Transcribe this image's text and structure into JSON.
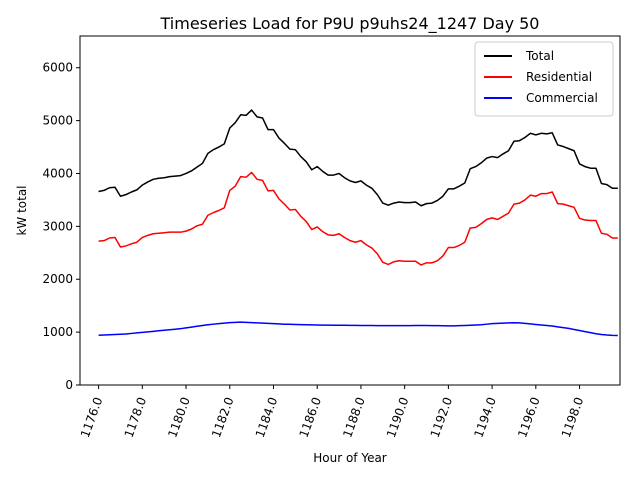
{
  "chart_data": {
    "type": "line",
    "title": "Timeseries Load for P9U p9uhs24_1247  Day 50",
    "xlabel": "Hour of Year",
    "ylabel": "kW total",
    "xlim": [
      1175.15,
      1199.85
    ],
    "ylim": [
      0,
      6600
    ],
    "x_ticks": [
      1176.0,
      1178.0,
      1180.0,
      1182.0,
      1184.0,
      1186.0,
      1188.0,
      1190.0,
      1192.0,
      1194.0,
      1196.0,
      1198.0
    ],
    "x_tick_labels": [
      "1176.0",
      "1178.0",
      "1180.0",
      "1182.0",
      "1184.0",
      "1186.0",
      "1188.0",
      "1190.0",
      "1192.0",
      "1194.0",
      "1196.0",
      "1198.0"
    ],
    "x_tick_rotation": "70 degrees",
    "y_ticks": [
      0,
      1000,
      2000,
      3000,
      4000,
      5000,
      6000
    ],
    "y_tick_labels": [
      "0",
      "1000",
      "2000",
      "3000",
      "4000",
      "5000",
      "6000"
    ],
    "grid": false,
    "legend_position": "top-right",
    "x": [
      1176.0,
      1176.25,
      1176.5,
      1176.75,
      1177.0,
      1177.25,
      1177.5,
      1177.75,
      1178.0,
      1178.25,
      1178.5,
      1178.75,
      1179.0,
      1179.25,
      1179.5,
      1179.75,
      1180.0,
      1180.25,
      1180.5,
      1180.75,
      1181.0,
      1181.25,
      1181.5,
      1181.75,
      1182.0,
      1182.25,
      1182.5,
      1182.75,
      1183.0,
      1183.25,
      1183.5,
      1183.75,
      1184.0,
      1184.25,
      1184.5,
      1184.75,
      1185.0,
      1185.25,
      1185.5,
      1185.75,
      1186.0,
      1186.25,
      1186.5,
      1186.75,
      1187.0,
      1187.25,
      1187.5,
      1187.75,
      1188.0,
      1188.25,
      1188.5,
      1188.75,
      1189.0,
      1189.25,
      1189.5,
      1189.75,
      1190.0,
      1190.25,
      1190.5,
      1190.75,
      1191.0,
      1191.25,
      1191.5,
      1191.75,
      1192.0,
      1192.25,
      1192.5,
      1192.75,
      1193.0,
      1193.25,
      1193.5,
      1193.75,
      1194.0,
      1194.25,
      1194.5,
      1194.75,
      1195.0,
      1195.25,
      1195.5,
      1195.75,
      1196.0,
      1196.25,
      1196.5,
      1196.75,
      1197.0,
      1197.25,
      1197.5,
      1197.75,
      1198.0,
      1198.25,
      1198.5,
      1198.75,
      1199.0,
      1199.25,
      1199.5,
      1199.75
    ],
    "series": [
      {
        "name": "Total",
        "color": "#000000",
        "values": [
          3660,
          3680,
          3730,
          3740,
          3570,
          3600,
          3650,
          3690,
          3780,
          3840,
          3890,
          3910,
          3920,
          3940,
          3950,
          3960,
          4000,
          4050,
          4120,
          4190,
          4380,
          4450,
          4500,
          4560,
          4860,
          4960,
          5110,
          5100,
          5200,
          5070,
          5050,
          4830,
          4830,
          4670,
          4570,
          4460,
          4450,
          4320,
          4220,
          4070,
          4130,
          4040,
          3970,
          3970,
          4000,
          3920,
          3860,
          3830,
          3860,
          3780,
          3720,
          3600,
          3440,
          3400,
          3440,
          3460,
          3450,
          3450,
          3460,
          3390,
          3430,
          3440,
          3490,
          3570,
          3710,
          3710,
          3760,
          3820,
          4090,
          4130,
          4200,
          4290,
          4320,
          4300,
          4370,
          4430,
          4610,
          4620,
          4680,
          4760,
          4730,
          4760,
          4750,
          4770,
          4540,
          4510,
          4470,
          4430,
          4180,
          4130,
          4100,
          4100,
          3810,
          3790,
          3720,
          3720
        ]
      },
      {
        "name": "Residential",
        "color": "#ff0000",
        "values": [
          2720,
          2730,
          2780,
          2790,
          2610,
          2630,
          2670,
          2700,
          2790,
          2830,
          2860,
          2870,
          2880,
          2890,
          2890,
          2890,
          2910,
          2950,
          3010,
          3040,
          3210,
          3260,
          3300,
          3350,
          3680,
          3760,
          3940,
          3930,
          4020,
          3890,
          3870,
          3670,
          3680,
          3520,
          3420,
          3310,
          3320,
          3190,
          3090,
          2940,
          2990,
          2900,
          2840,
          2830,
          2860,
          2790,
          2730,
          2700,
          2730,
          2650,
          2590,
          2480,
          2320,
          2280,
          2330,
          2350,
          2340,
          2340,
          2340,
          2270,
          2310,
          2310,
          2350,
          2440,
          2600,
          2600,
          2640,
          2700,
          2970,
          2980,
          3050,
          3130,
          3160,
          3130,
          3190,
          3250,
          3420,
          3440,
          3500,
          3590,
          3570,
          3620,
          3620,
          3650,
          3430,
          3420,
          3390,
          3360,
          3150,
          3120,
          3110,
          3110,
          2870,
          2850,
          2780,
          2780
        ]
      },
      {
        "name": "Commercial",
        "color": "#0000ff",
        "values": [
          940,
          945,
          950,
          955,
          960,
          965,
          975,
          985,
          995,
          1005,
          1015,
          1025,
          1035,
          1045,
          1055,
          1065,
          1080,
          1095,
          1110,
          1125,
          1140,
          1150,
          1160,
          1170,
          1180,
          1185,
          1190,
          1185,
          1180,
          1175,
          1170,
          1165,
          1160,
          1155,
          1150,
          1148,
          1145,
          1142,
          1140,
          1138,
          1135,
          1133,
          1132,
          1131,
          1130,
          1129,
          1128,
          1127,
          1126,
          1125,
          1124,
          1123,
          1122,
          1122,
          1122,
          1122,
          1123,
          1123,
          1124,
          1124,
          1124,
          1123,
          1122,
          1120,
          1118,
          1118,
          1122,
          1126,
          1130,
          1135,
          1140,
          1150,
          1160,
          1165,
          1170,
          1175,
          1178,
          1175,
          1165,
          1155,
          1145,
          1135,
          1125,
          1115,
          1100,
          1085,
          1070,
          1050,
          1030,
          1010,
          990,
          970,
          955,
          945,
          938,
          935
        ]
      }
    ]
  }
}
